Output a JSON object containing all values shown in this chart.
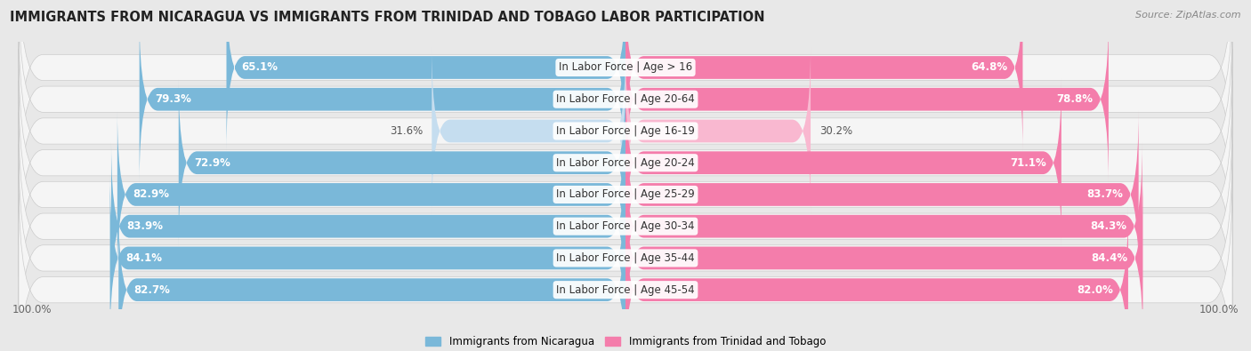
{
  "title": "IMMIGRANTS FROM NICARAGUA VS IMMIGRANTS FROM TRINIDAD AND TOBAGO LABOR PARTICIPATION",
  "source": "Source: ZipAtlas.com",
  "categories": [
    "In Labor Force | Age > 16",
    "In Labor Force | Age 20-64",
    "In Labor Force | Age 16-19",
    "In Labor Force | Age 20-24",
    "In Labor Force | Age 25-29",
    "In Labor Force | Age 30-34",
    "In Labor Force | Age 35-44",
    "In Labor Force | Age 45-54"
  ],
  "nicaragua_values": [
    65.1,
    79.3,
    31.6,
    72.9,
    82.9,
    83.9,
    84.1,
    82.7
  ],
  "trinidad_values": [
    64.8,
    78.8,
    30.2,
    71.1,
    83.7,
    84.3,
    84.4,
    82.0
  ],
  "nicaragua_color": "#7ab8d9",
  "nicaragua_color_light": "#c5ddef",
  "trinidad_color": "#f47dab",
  "trinidad_color_light": "#f9b8d0",
  "background_color": "#e8e8e8",
  "row_bg_color": "#f5f5f5",
  "max_value": 100.0,
  "legend_nicaragua": "Immigrants from Nicaragua",
  "legend_trinidad": "Immigrants from Trinidad and Tobago",
  "title_fontsize": 10.5,
  "label_fontsize": 8.5,
  "value_fontsize": 8.5,
  "source_fontsize": 8
}
